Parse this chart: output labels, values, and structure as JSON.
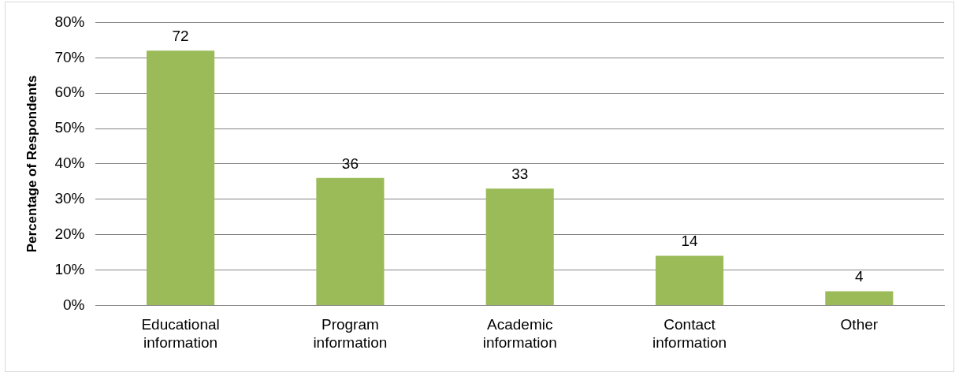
{
  "chart_data": {
    "type": "bar",
    "ylabel": "Percentage of Respondents",
    "categories": [
      "Educational information",
      "Program information",
      "Academic information",
      "Contact information",
      "Other"
    ],
    "values": [
      72,
      36,
      33,
      14,
      4
    ],
    "color": "#9bbb59",
    "data_labels": true,
    "ylim": [
      0,
      80
    ],
    "yticks": [
      {
        "value": 0,
        "label": "0%"
      },
      {
        "value": 10,
        "label": "10%"
      },
      {
        "value": 20,
        "label": "20%"
      },
      {
        "value": 30,
        "label": "30%"
      },
      {
        "value": 40,
        "label": "40%"
      },
      {
        "value": 50,
        "label": "50%"
      },
      {
        "value": 60,
        "label": "60%"
      },
      {
        "value": 70,
        "label": "70%"
      },
      {
        "value": 80,
        "label": "80%"
      }
    ],
    "grid": "y",
    "legend": false
  }
}
